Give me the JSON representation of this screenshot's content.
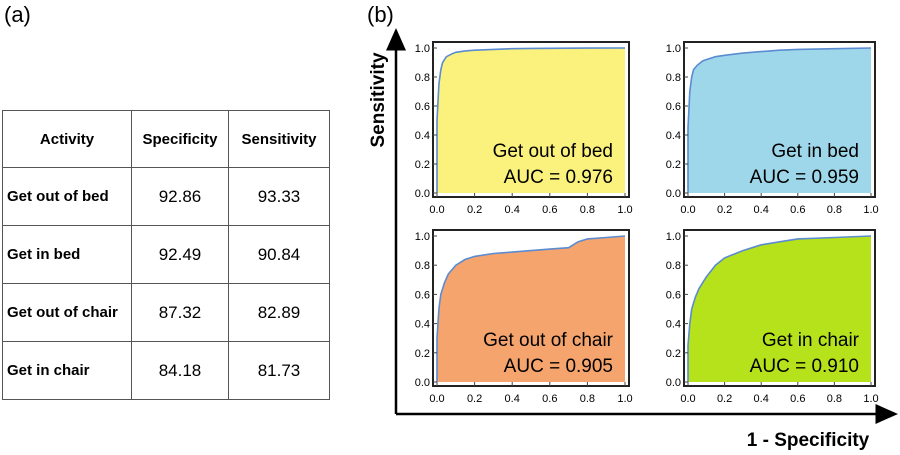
{
  "panel_a": {
    "label": "(a)",
    "headers": [
      "Activity",
      "Specificity",
      "Sensitivity"
    ],
    "rows": [
      {
        "activity": "Get out of bed",
        "specificity": "92.86",
        "sensitivity": "93.33"
      },
      {
        "activity": "Get in bed",
        "specificity": "92.49",
        "sensitivity": "90.84"
      },
      {
        "activity": "Get out of chair",
        "specificity": "87.32",
        "sensitivity": "82.89"
      },
      {
        "activity": "Get in chair",
        "specificity": "84.18",
        "sensitivity": "81.73"
      }
    ]
  },
  "panel_b": {
    "label": "(b)",
    "ylabel": "Sensitivity",
    "xlabel": "1 - Specificity"
  },
  "chart_data": [
    {
      "type": "area",
      "title": "Get out of bed",
      "annotation": "AUC = 0.976",
      "fill_color": "#fbf27d",
      "line_color": "#5b8bd0",
      "xlim": [
        0,
        1
      ],
      "ylim": [
        0,
        1
      ],
      "xticks": [
        "0.0",
        "0.2",
        "0.4",
        "0.6",
        "0.8",
        "1.0"
      ],
      "yticks": [
        "0.0",
        "0.2",
        "0.4",
        "0.6",
        "0.8",
        "1.0"
      ],
      "x": [
        0,
        0.0,
        0.01,
        0.02,
        0.03,
        0.05,
        0.08,
        0.1,
        0.15,
        0.2,
        0.3,
        0.4,
        0.5,
        0.6,
        0.8,
        1.0
      ],
      "y": [
        0,
        0.5,
        0.75,
        0.85,
        0.9,
        0.94,
        0.96,
        0.97,
        0.98,
        0.985,
        0.99,
        0.995,
        0.997,
        0.998,
        0.999,
        1.0
      ]
    },
    {
      "type": "area",
      "title": "Get in bed",
      "annotation": "AUC = 0.959",
      "fill_color": "#9fd7ea",
      "line_color": "#5b8bd0",
      "xlim": [
        0,
        1
      ],
      "ylim": [
        0,
        1
      ],
      "xticks": [
        "0.0",
        "0.2",
        "0.4",
        "0.6",
        "0.8",
        "1.0"
      ],
      "yticks": [
        "0.0",
        "0.2",
        "0.4",
        "0.6",
        "0.8",
        "1.0"
      ],
      "x": [
        0,
        0.0,
        0.01,
        0.02,
        0.03,
        0.05,
        0.08,
        0.1,
        0.15,
        0.2,
        0.3,
        0.4,
        0.5,
        0.6,
        0.8,
        1.0
      ],
      "y": [
        0,
        0.45,
        0.7,
        0.8,
        0.85,
        0.88,
        0.91,
        0.92,
        0.94,
        0.95,
        0.965,
        0.975,
        0.985,
        0.99,
        0.995,
        1.0
      ]
    },
    {
      "type": "area",
      "title": "Get out of chair",
      "annotation": "AUC = 0.905",
      "fill_color": "#f5a46d",
      "line_color": "#5b8bd0",
      "xlim": [
        0,
        1
      ],
      "ylim": [
        0,
        1
      ],
      "xticks": [
        "0.0",
        "0.2",
        "0.4",
        "0.6",
        "0.8",
        "1.0"
      ],
      "yticks": [
        "0.0",
        "0.2",
        "0.4",
        "0.6",
        "0.8",
        "1.0"
      ],
      "x": [
        0,
        0.0,
        0.01,
        0.02,
        0.04,
        0.06,
        0.1,
        0.15,
        0.2,
        0.3,
        0.4,
        0.5,
        0.6,
        0.7,
        0.75,
        0.8,
        0.9,
        1.0
      ],
      "y": [
        0,
        0.3,
        0.5,
        0.6,
        0.68,
        0.74,
        0.8,
        0.84,
        0.86,
        0.88,
        0.89,
        0.9,
        0.91,
        0.92,
        0.96,
        0.98,
        0.99,
        1.0
      ]
    },
    {
      "type": "area",
      "title": "Get in chair",
      "annotation": "AUC = 0.910",
      "fill_color": "#b6e21c",
      "line_color": "#5b8bd0",
      "xlim": [
        0,
        1
      ],
      "ylim": [
        0,
        1
      ],
      "xticks": [
        "0.0",
        "0.2",
        "0.4",
        "0.6",
        "0.8",
        "1.0"
      ],
      "yticks": [
        "0.0",
        "0.2",
        "0.4",
        "0.6",
        "0.8",
        "1.0"
      ],
      "x": [
        0,
        0.0,
        0.01,
        0.02,
        0.04,
        0.06,
        0.1,
        0.15,
        0.2,
        0.3,
        0.4,
        0.5,
        0.6,
        0.8,
        1.0
      ],
      "y": [
        0,
        0.25,
        0.4,
        0.5,
        0.58,
        0.64,
        0.72,
        0.8,
        0.85,
        0.9,
        0.94,
        0.96,
        0.98,
        0.99,
        1.0
      ]
    }
  ]
}
